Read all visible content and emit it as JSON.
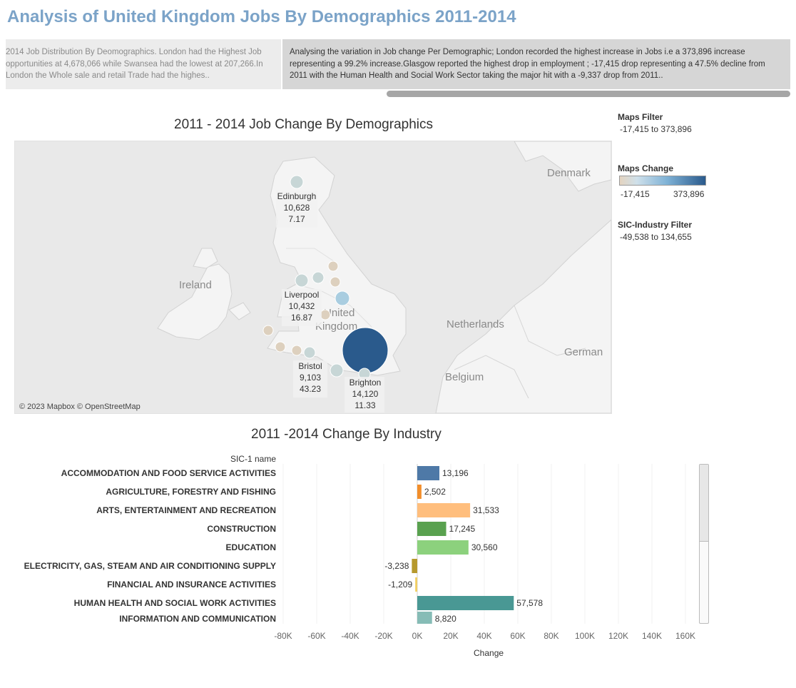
{
  "header": {
    "title": "Analysis of United Kingdom Jobs By Demographics 2011-2014"
  },
  "stories": [
    {
      "text": "2014 Job Distribution By Deomographics.  London had the Highest Job opportunities at 4,678,066 while Swansea had the lowest at 207,266.In London the Whole sale and retail Trade had the highes.."
    },
    {
      "text": "Analysing the variation in Job change Per Demographic; London recorded the highest increase in Jobs i.e a 373,896 increase representing a 99.2% increase.Glasgow reported the highest drop in employment ; -17,415 drop representing a 47.5% decline from 2011 with the Human Health and Social Work Sector taking the major hit with a -9,337 drop from 2011.."
    }
  ],
  "map_sheet": {
    "title": "2011 - 2014 Job Change By Demographics",
    "attribution": "© 2023 Mapbox © OpenStreetMap",
    "place_labels": [
      "Denmark",
      "Ireland",
      "United",
      "Kingdom",
      "Netherlands",
      "Belgium",
      "German"
    ],
    "city_labels": [
      {
        "city": "Edinburgh",
        "value": "10,628",
        "pct": "7.17"
      },
      {
        "city": "Liverpool",
        "value": "10,432",
        "pct": "16.87"
      },
      {
        "city": "Bristol",
        "value": "9,103",
        "pct": "43.23"
      },
      {
        "city": "Brighton",
        "value": "14,120",
        "pct": "11.33"
      }
    ],
    "bubble_colors": [
      "#c7d6d6",
      "#ddd0be",
      "#2a5a8c",
      "#a9cde0"
    ]
  },
  "legends": {
    "maps_filter": {
      "title": "Maps Filter",
      "range": "-17,415 to 373,896"
    },
    "maps_change": {
      "title": "Maps Change",
      "min": "-17,415",
      "max": "373,896"
    },
    "sic_filter": {
      "title": "SIC-Industry Filter",
      "range": "-49,538 to 134,655"
    }
  },
  "industry_sheet": {
    "title": "2011 -2014 Change By Industry",
    "category_header": "SIC-1 name",
    "x_axis_title": "Change"
  },
  "chart_data": {
    "type": "bar",
    "orientation": "horizontal",
    "categories": [
      "ACCOMMODATION AND FOOD SERVICE ACTIVITIES",
      "AGRICULTURE, FORESTRY AND FISHING",
      "ARTS, ENTERTAINMENT AND RECREATION",
      "CONSTRUCTION",
      "EDUCATION",
      "ELECTRICITY, GAS, STEAM AND AIR CONDITIONING SUPPLY",
      "FINANCIAL AND INSURANCE ACTIVITIES",
      "HUMAN HEALTH AND SOCIAL WORK ACTIVITIES",
      "INFORMATION AND COMMUNICATION"
    ],
    "values": [
      13196,
      2502,
      31533,
      17245,
      30560,
      -3238,
      -1209,
      57578,
      8820
    ],
    "value_labels": [
      "13,196",
      "2,502",
      "31,533",
      "17,245",
      "30,560",
      "-3,238",
      "-1,209",
      "57,578",
      "8,820"
    ],
    "colors": [
      "#4e79a7",
      "#f28e2b",
      "#ffbe7d",
      "#59a14f",
      "#8cd17d",
      "#b6992d",
      "#f1ce63",
      "#499894",
      "#86bcb6"
    ],
    "xlabel": "Change",
    "xlim": [
      -80000,
      170000
    ],
    "xticks": [
      -80000,
      -60000,
      -40000,
      -20000,
      0,
      20000,
      40000,
      60000,
      80000,
      100000,
      120000,
      140000,
      160000
    ],
    "xtick_labels": [
      "-80K",
      "-60K",
      "-40K",
      "-20K",
      "0K",
      "20K",
      "40K",
      "60K",
      "80K",
      "100K",
      "120K",
      "140K",
      "160K"
    ],
    "grid": true
  }
}
